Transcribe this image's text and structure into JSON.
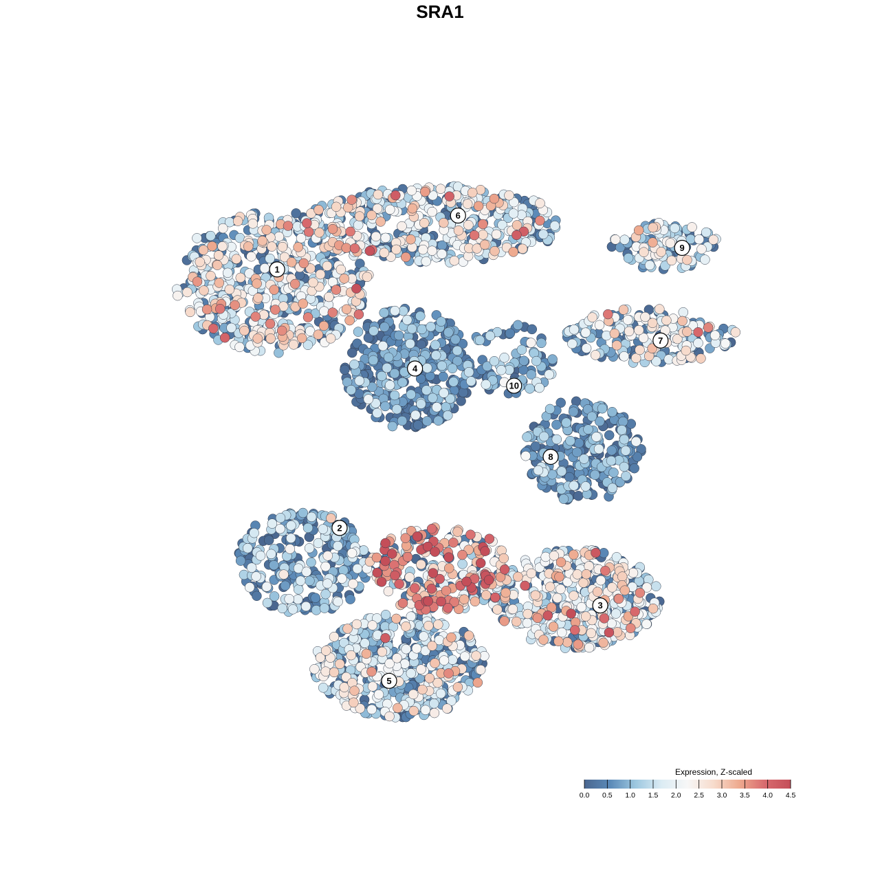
{
  "chart_data": {
    "type": "scatter",
    "title": "SRA1",
    "xlabel": "",
    "ylabel": "",
    "grid": false,
    "legend": {
      "title": "Expression, Z-scaled",
      "placement": "bottom-right",
      "min": 0.0,
      "max": 4.5,
      "ticks": [
        "0.0",
        "0.5",
        "1.0",
        "1.5",
        "2.0",
        "2.5",
        "3.0",
        "3.5",
        "4.0",
        "4.5"
      ],
      "colors": [
        "#4a6790",
        "#5b8ab8",
        "#9ec8e0",
        "#dcecf4",
        "#f7f7f7",
        "#f7dccd",
        "#eeaa8f",
        "#d86a6e",
        "#c44e59"
      ]
    },
    "cluster_labels": [
      {
        "label": "1",
        "x": -7.2,
        "y": 6.6
      },
      {
        "label": "2",
        "x": -4.3,
        "y": -5.4
      },
      {
        "label": "3",
        "x": 7.8,
        "y": -9.0
      },
      {
        "label": "4",
        "x": -0.8,
        "y": 2.0
      },
      {
        "label": "5",
        "x": -2.0,
        "y": -12.5
      },
      {
        "label": "6",
        "x": 1.2,
        "y": 9.1
      },
      {
        "label": "7",
        "x": 10.6,
        "y": 3.3
      },
      {
        "label": "8",
        "x": 5.5,
        "y": -2.1
      },
      {
        "label": "9",
        "x": 11.6,
        "y": 7.6
      },
      {
        "label": "10",
        "x": 3.8,
        "y": 1.2
      }
    ],
    "clusters": [
      {
        "label": "1",
        "cx": -7.4,
        "cy": 6.0,
        "rx": 4.5,
        "ry": 3.3,
        "n": 560,
        "mean_expr": 2.0,
        "sd_expr": 0.9
      },
      {
        "label": "6",
        "cx": 0.0,
        "cy": 8.7,
        "rx": 6.0,
        "ry": 1.8,
        "n": 440,
        "mean_expr": 1.8,
        "sd_expr": 0.9
      },
      {
        "label": "4",
        "cx": -1.1,
        "cy": 2.0,
        "rx": 3.0,
        "ry": 2.8,
        "n": 360,
        "mean_expr": 0.55,
        "sd_expr": 0.6
      },
      {
        "label": "10",
        "cx": 3.6,
        "cy": 2.3,
        "rx": 2.1,
        "ry": 1.8,
        "n": 90,
        "mean_expr": 0.8,
        "sd_expr": 0.6
      },
      {
        "label": "9",
        "cx": 10.8,
        "cy": 7.7,
        "rx": 2.5,
        "ry": 1.1,
        "n": 120,
        "mean_expr": 1.6,
        "sd_expr": 0.8
      },
      {
        "label": "7",
        "cx": 10.2,
        "cy": 3.5,
        "rx": 4.0,
        "ry": 1.3,
        "n": 200,
        "mean_expr": 1.8,
        "sd_expr": 0.8
      },
      {
        "label": "8",
        "cx": 7.0,
        "cy": -1.8,
        "rx": 2.7,
        "ry": 2.4,
        "n": 250,
        "mean_expr": 0.6,
        "sd_expr": 0.6
      },
      {
        "label": "2",
        "cx": -6.0,
        "cy": -7.0,
        "rx": 3.2,
        "ry": 2.4,
        "n": 260,
        "mean_expr": 0.9,
        "sd_expr": 0.7
      },
      {
        "label": "3",
        "cx": 6.7,
        "cy": -8.7,
        "rx": 3.9,
        "ry": 2.3,
        "n": 430,
        "mean_expr": 2.1,
        "sd_expr": 0.8
      },
      {
        "label": "5",
        "cx": -1.5,
        "cy": -11.8,
        "rx": 4.0,
        "ry": 2.4,
        "n": 480,
        "mean_expr": 1.5,
        "sd_expr": 0.8
      },
      {
        "label": "hotspot",
        "cx": 0.3,
        "cy": -7.3,
        "rx": 3.3,
        "ry": 2.0,
        "n": 260,
        "mean_expr": 2.9,
        "sd_expr": 0.9
      }
    ],
    "xlim": [
      -14,
      16
    ],
    "ylim": [
      -16,
      14
    ]
  }
}
